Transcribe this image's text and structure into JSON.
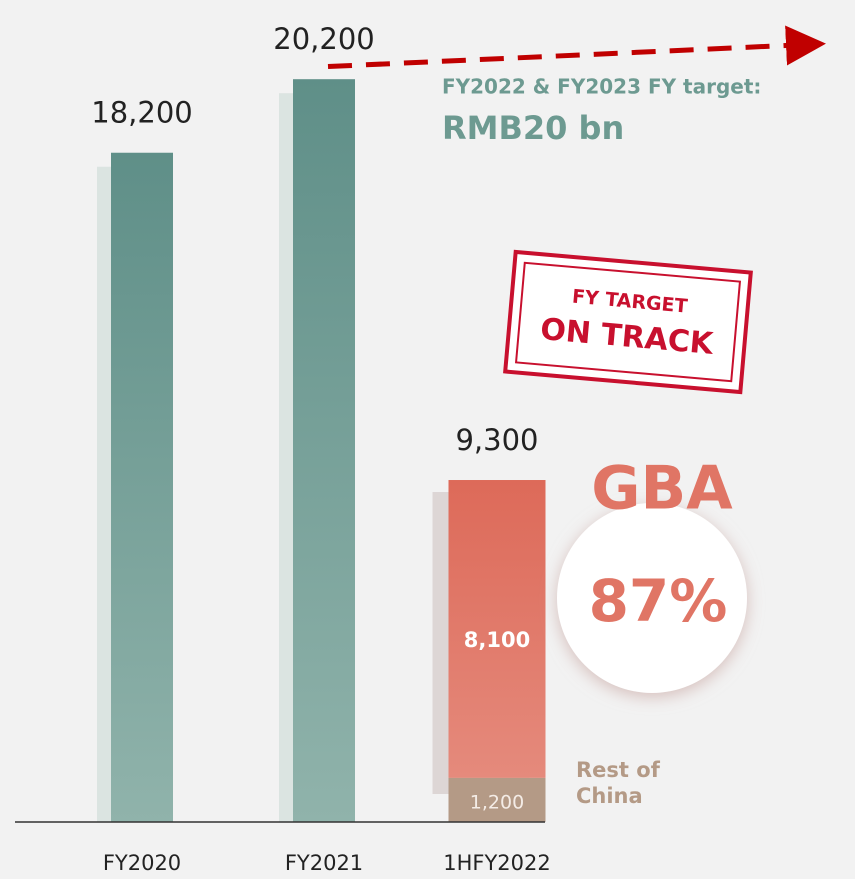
{
  "chart_data": {
    "type": "bar",
    "categories": [
      "FY2020",
      "FY2021",
      "1HFY2022"
    ],
    "series": [
      {
        "color": "#6a968f",
        "values": [
          18200,
          20200,
          null
        ],
        "value_labels": [
          "18,200",
          "20,200",
          null
        ]
      },
      {
        "name": "Rest of China",
        "color": "#b49a86",
        "values": [
          null,
          null,
          1200
        ],
        "value_labels": [
          null,
          null,
          "1,200"
        ]
      },
      {
        "name": "GBA",
        "color": "#e07565",
        "values": [
          null,
          null,
          8100
        ],
        "value_labels": [
          null,
          null,
          "8,100"
        ]
      }
    ],
    "total": {
      "value": 9300,
      "label": "9,300"
    },
    "target": {
      "value": 20000,
      "label_line1": "FY2022 & FY2023 FY target:",
      "label_line2": "RMB20 bn"
    },
    "stamp": {
      "line1": "FY TARGET",
      "line2": "ON TRACK"
    },
    "share": {
      "value": 87,
      "label": "87%"
    },
    "ylim": [
      0,
      22000
    ]
  }
}
